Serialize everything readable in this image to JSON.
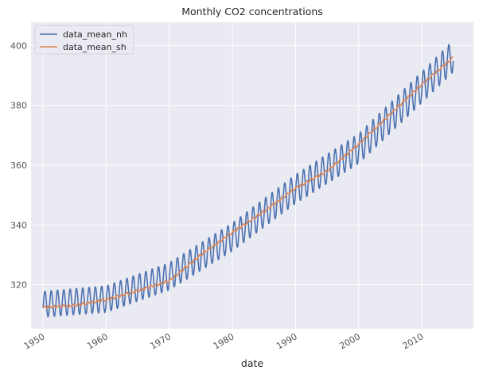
{
  "chart_data": {
    "type": "line",
    "title": "Monthly CO2 concentrations",
    "xlabel": "date",
    "ylabel": "",
    "x_range": [
      1948.1,
      2018.2
    ],
    "ylim": [
      305.3,
      407.8
    ],
    "x_ticks": [
      1950,
      1960,
      1970,
      1980,
      1990,
      2000,
      2010
    ],
    "x_tick_labels": [
      "1950",
      "1960",
      "1970",
      "1980",
      "1990",
      "2000",
      "2010"
    ],
    "y_ticks": [
      320,
      340,
      360,
      380,
      400
    ],
    "y_tick_labels": [
      "320",
      "340",
      "360",
      "380",
      "400"
    ],
    "grid": true,
    "legend_position": "upper-left",
    "x_start": 1950,
    "x_end": 2015,
    "series": [
      {
        "name": "data_mean_nh",
        "color": "#4c72b0",
        "trend_points": [
          [
            1950,
            313.5
          ],
          [
            1960,
            315.2
          ],
          [
            1970,
            322.8
          ],
          [
            1980,
            336.0
          ],
          [
            1990,
            352.0
          ],
          [
            2000,
            365.5
          ],
          [
            2010,
            386.0
          ],
          [
            2015,
            396.5
          ]
        ],
        "seasonal_amplitude_points": [
          [
            1950,
            4.3
          ],
          [
            1980,
            4.7
          ],
          [
            2000,
            5.0
          ],
          [
            2015,
            5.3
          ]
        ]
      },
      {
        "name": "data_mean_sh",
        "color": "#dd8452",
        "points": [
          [
            1950,
            312.5
          ],
          [
            1955,
            313.1
          ],
          [
            1960,
            315.0
          ],
          [
            1965,
            318.0
          ],
          [
            1970,
            321.3
          ],
          [
            1975,
            330.0
          ],
          [
            1980,
            337.5
          ],
          [
            1985,
            344.5
          ],
          [
            1990,
            352.3
          ],
          [
            1995,
            358.0
          ],
          [
            2000,
            367.0
          ],
          [
            2005,
            377.0
          ],
          [
            2010,
            387.0
          ],
          [
            2015,
            396.0
          ]
        ]
      }
    ]
  }
}
